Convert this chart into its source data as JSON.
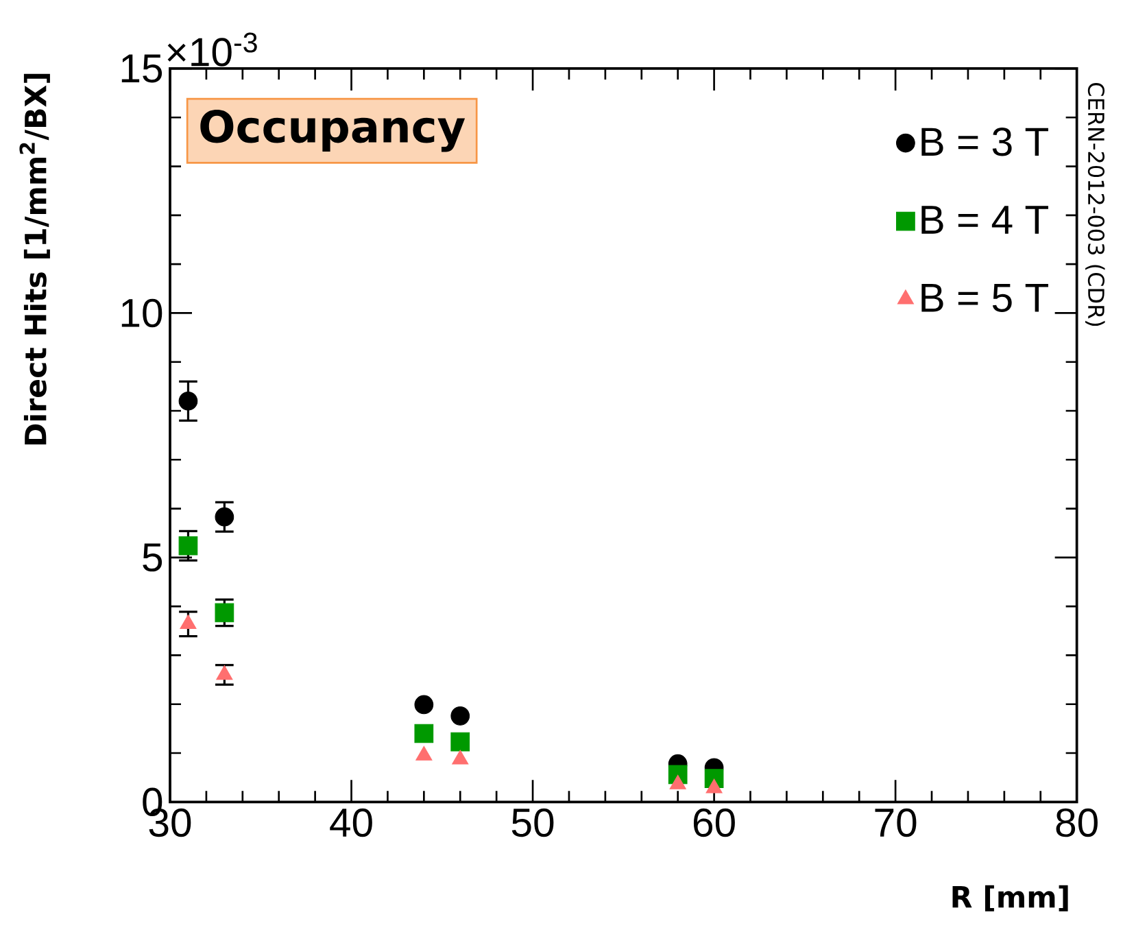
{
  "chart_data": {
    "type": "scatter",
    "xlabel": "R [mm]",
    "ylabel": "Direct Hits [1/mm$^{2}$/BX]",
    "annotations": [
      "Occupancy",
      "CERN-2012-003 (CDR)",
      "×10$^{-3}$"
    ],
    "x": [
      31,
      33,
      44,
      46,
      58,
      60
    ],
    "series": [
      {
        "name": "B = 3 T",
        "color": "#000000",
        "marker": "circle",
        "values": [
          8.2,
          5.83,
          1.99,
          1.76,
          0.78,
          0.7
        ],
        "errors": [
          0.4,
          0.3,
          null,
          null,
          null,
          null
        ]
      },
      {
        "name": "B = 4 T",
        "color": "#009900",
        "marker": "square",
        "values": [
          5.24,
          3.87,
          1.4,
          1.23,
          0.56,
          0.48
        ],
        "errors": [
          0.3,
          0.27,
          null,
          null,
          null,
          null
        ]
      },
      {
        "name": "B = 5 T",
        "color": "#ff6f6f",
        "marker": "triangle",
        "values": [
          3.64,
          2.6,
          0.95,
          0.87,
          0.36,
          0.28
        ],
        "errors": [
          0.25,
          0.2,
          null,
          null,
          null,
          null
        ]
      }
    ],
    "xlim": [
      30,
      80
    ],
    "ylim": [
      0,
      15
    ],
    "xticks": [
      30,
      40,
      50,
      60,
      70,
      80
    ],
    "yticks": [
      0,
      5,
      10,
      15
    ],
    "grid": false,
    "legend": "top right"
  }
}
